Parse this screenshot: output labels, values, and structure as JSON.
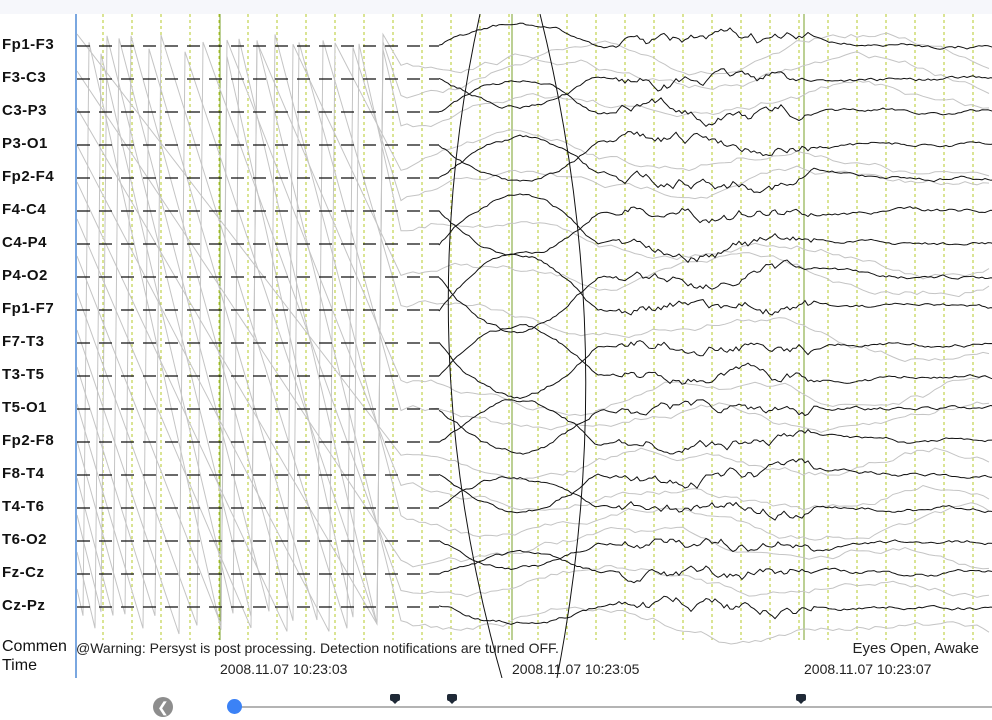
{
  "montage": {
    "channels": [
      "Fp1-F3",
      "F3-C3",
      "C3-P3",
      "P3-O1",
      "Fp2-F4",
      "F4-C4",
      "C4-P4",
      "P4-O2",
      "Fp1-F7",
      "F7-T3",
      "T3-T5",
      "T5-O1",
      "Fp2-F8",
      "F8-T4",
      "T4-T6",
      "T6-O2",
      "Fz-Cz",
      "Cz-Pz"
    ]
  },
  "rows": {
    "comment_label": "Commen",
    "time_label": "Time"
  },
  "comments": {
    "warning": "@Warning: Persyst is post processing. Detection notifications are turned OFF.",
    "state": "Eyes Open, Awake"
  },
  "time_marks": [
    "2008.11.07 10:23:03",
    "2008.11.07 10:23:05",
    "2008.11.07 10:23:07"
  ],
  "timeline": {
    "back_icon": "chevron-left-icon",
    "marker_icon": "comment-marker-icon"
  },
  "colors": {
    "trace": "#111111",
    "overlay_trace": "#c4c4c4",
    "second_gridline": "#7aa02a",
    "subgrid": "#b4c92a",
    "accent": "#3b82f6"
  }
}
